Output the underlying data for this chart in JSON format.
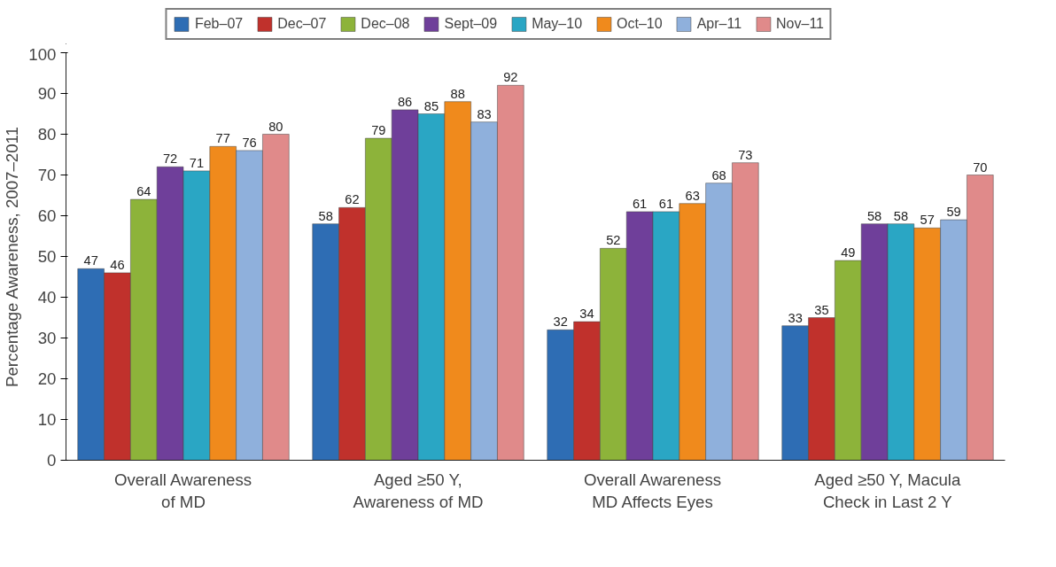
{
  "chart_data": {
    "type": "bar",
    "ylabel": "Percentage Awareness, 2007–2011",
    "categories": [
      "Overall Awareness\nof MD",
      "Aged ≥50 Y,\nAwareness of MD",
      "Overall Awareness\nMD Affects Eyes",
      "Aged ≥50 Y, Macula\nCheck in Last 2 Y"
    ],
    "series": [
      {
        "name": "Feb–07",
        "color": "#2e6db4",
        "values": [
          47,
          58,
          32,
          33
        ]
      },
      {
        "name": "Dec–07",
        "color": "#c0312c",
        "values": [
          46,
          62,
          34,
          35
        ]
      },
      {
        "name": "Dec–08",
        "color": "#8db33a",
        "values": [
          64,
          79,
          52,
          49
        ]
      },
      {
        "name": "Sept–09",
        "color": "#6f3f9a",
        "values": [
          72,
          86,
          61,
          58
        ]
      },
      {
        "name": "May–10",
        "color": "#2aa6c4",
        "values": [
          71,
          85,
          61,
          58
        ]
      },
      {
        "name": "Oct–10",
        "color": "#f08a1c",
        "values": [
          77,
          88,
          63,
          57
        ]
      },
      {
        "name": "Apr–11",
        "color": "#8fb0dc",
        "values": [
          76,
          83,
          68,
          59
        ]
      },
      {
        "name": "Nov–11",
        "color": "#e08a8a",
        "values": [
          80,
          92,
          73,
          70
        ]
      }
    ],
    "ylim": [
      0,
      100
    ],
    "yticks": [
      0,
      10,
      20,
      30,
      40,
      50,
      60,
      70,
      80,
      90,
      100
    ],
    "grid": false,
    "legend": "top",
    "data_labels": true
  }
}
